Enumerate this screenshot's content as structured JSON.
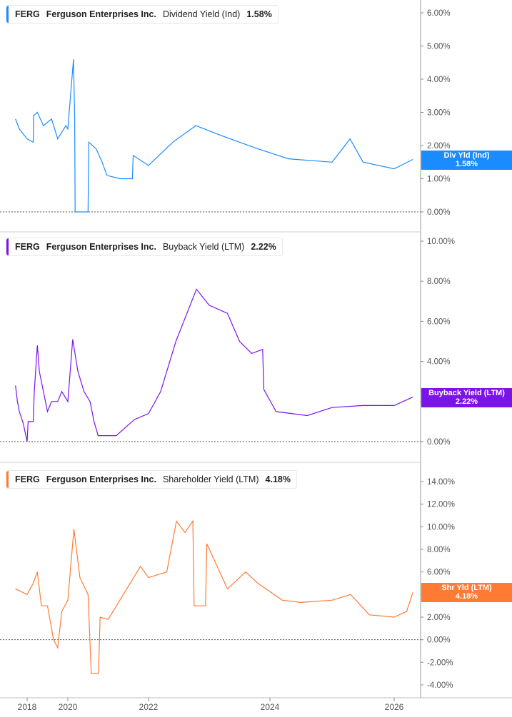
{
  "ticker": "FERG",
  "company": "Ferguson Enterprises Inc.",
  "x_ticks": [
    "2018",
    "2020",
    "2022",
    "2024",
    "2026"
  ],
  "chart_data": [
    {
      "type": "line",
      "metric": "Dividend Yield (Ind)",
      "value_label": "1.58%",
      "tag_label": "Div Yld (Ind)",
      "color": "#1a8cff",
      "ylim": [
        0,
        6
      ],
      "y_ticks": [
        "6.00%",
        "5.00%",
        "4.00%",
        "3.00%",
        "2.00%",
        "1.00%",
        "0.00%"
      ],
      "y_tick_values": [
        6,
        5,
        4,
        3,
        2,
        1,
        0
      ],
      "x": [
        2017.7,
        2017.8,
        2018,
        2018.3,
        2018.32,
        2018.5,
        2018.8,
        2019.2,
        2019.5,
        2019.9,
        2020.0,
        2020.14,
        2020.17,
        2020.18,
        2020.5,
        2020.52,
        2020.7,
        2020.85,
        2020.97,
        2021.3,
        2021.6,
        2021.62,
        2022,
        2022.4,
        2022.78,
        2023.2,
        2023.8,
        2024.3,
        2025.0,
        2025.29,
        2025.5,
        2026,
        2026.3
      ],
      "y": [
        2.8,
        2.5,
        2.2,
        2.1,
        2.9,
        3.0,
        2.6,
        2.8,
        2.2,
        2.6,
        2.5,
        4.6,
        2.8,
        0,
        0,
        2.1,
        1.9,
        1.5,
        1.1,
        1.0,
        1.0,
        1.7,
        1.4,
        2.1,
        2.6,
        2.3,
        1.9,
        1.6,
        1.5,
        2.2,
        1.5,
        1.3,
        1.58
      ]
    },
    {
      "type": "line",
      "metric": "Buyback Yield (LTM)",
      "value_label": "2.22%",
      "tag_label": "Buyback Yield (LTM)",
      "color": "#7b14e8",
      "ylim": [
        0,
        10
      ],
      "y_ticks": [
        "10.00%",
        "8.00%",
        "6.00%",
        "4.00%",
        "2.00%",
        "0.00%"
      ],
      "y_tick_values": [
        10,
        8,
        6,
        4,
        2,
        0
      ],
      "x": [
        2017.7,
        2017.75,
        2017.8,
        2017.9,
        2018,
        2018.05,
        2018.3,
        2018.35,
        2018.5,
        2018.6,
        2018.8,
        2019,
        2019.2,
        2019.5,
        2019.7,
        2020,
        2020.12,
        2020.25,
        2020.4,
        2020.55,
        2020.65,
        2020.75,
        2021.2,
        2021.65,
        2022,
        2022.2,
        2022.45,
        2022.79,
        2023.0,
        2023.3,
        2023.5,
        2023.7,
        2023.88,
        2023.9,
        2024.1,
        2024.6,
        2025,
        2025.5,
        2026,
        2026.3
      ],
      "y": [
        2.8,
        2.0,
        1.5,
        0.9,
        0,
        1.0,
        1.0,
        2.5,
        4.8,
        3.5,
        2.5,
        1.5,
        2.0,
        2.0,
        2.5,
        2.0,
        5.1,
        3.5,
        2.5,
        2.0,
        1.0,
        0.3,
        0.3,
        1.1,
        1.4,
        2.5,
        5.0,
        7.6,
        6.8,
        6.4,
        5.0,
        4.4,
        4.6,
        2.6,
        1.5,
        1.3,
        1.7,
        1.8,
        1.8,
        2.22
      ]
    },
    {
      "type": "line",
      "metric": "Shareholder Yield (LTM)",
      "value_label": "4.18%",
      "tag_label": "Shr Yld (LTM)",
      "color": "#ff7a33",
      "ylim": [
        -4,
        14
      ],
      "y_ticks": [
        "14.00%",
        "12.00%",
        "10.00%",
        "8.00%",
        "6.00%",
        "4.00%",
        "2.00%",
        "0.00%",
        "-2.00%",
        "-4.00%"
      ],
      "y_tick_values": [
        14,
        12,
        10,
        8,
        6,
        4,
        2,
        0,
        -2,
        -4
      ],
      "x": [
        2017.7,
        2018,
        2018.3,
        2018.5,
        2018.7,
        2019,
        2019.3,
        2019.5,
        2019.7,
        2020,
        2020.15,
        2020.3,
        2020.5,
        2020.58,
        2020.76,
        2020.8,
        2021,
        2021.8,
        2022,
        2022.3,
        2022.46,
        2022.6,
        2022.73,
        2022.75,
        2022.94,
        2022.96,
        2023.3,
        2023.6,
        2023.8,
        2024.2,
        2024.5,
        2025,
        2025.3,
        2025.6,
        2026,
        2026.2,
        2026.3
      ],
      "y": [
        4.5,
        4.0,
        5.0,
        6.0,
        3.0,
        3.0,
        0,
        -0.7,
        2.5,
        3.5,
        9.8,
        5.5,
        4.0,
        -3.0,
        -3.0,
        2.0,
        1.8,
        6.5,
        5.5,
        6.0,
        10.5,
        9.5,
        10.5,
        3.0,
        3.0,
        8.5,
        4.5,
        6.0,
        5.0,
        3.5,
        3.3,
        3.5,
        4.0,
        2.2,
        2.0,
        2.5,
        4.18
      ]
    }
  ]
}
